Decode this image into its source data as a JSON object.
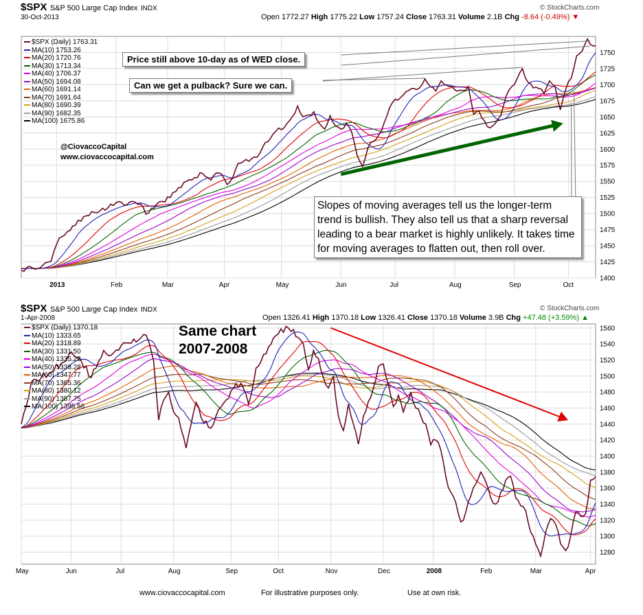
{
  "top": {
    "symbol": "$SPX",
    "description": "S&P 500 Large Cap Index",
    "exchange": "INDX",
    "date": "30-Oct-2013",
    "watermark": "© StockCharts.com",
    "ohlc": {
      "open_label": "Open",
      "open": "1772.27",
      "high_label": "High",
      "high": "1775.22",
      "low_label": "Low",
      "low": "1757.24",
      "close_label": "Close",
      "close": "1763.31",
      "volume_label": "Volume",
      "volume": "2.1B",
      "chg_label": "Chg",
      "chg": "-8.64 (-0.49%)",
      "chg_arrow": "▼"
    },
    "legend": [
      {
        "label": "$SPX (Daily) 1763.31",
        "color": "#7a0c2b"
      },
      {
        "label": "MA(10) 1753.26",
        "color": "#1f1fb4"
      },
      {
        "label": "MA(20) 1720.76",
        "color": "#e00000"
      },
      {
        "label": "MA(30) 1713.34",
        "color": "#006400"
      },
      {
        "label": "MA(40) 1706.37",
        "color": "#e000e0"
      },
      {
        "label": "MA(50) 1694.08",
        "color": "#9900cc"
      },
      {
        "label": "MA(60) 1691.14",
        "color": "#e06000"
      },
      {
        "label": "MA(70) 1691.64",
        "color": "#8b3a1a"
      },
      {
        "label": "MA(80) 1690.39",
        "color": "#d4a017"
      },
      {
        "label": "MA(90) 1682.35",
        "color": "#999999"
      },
      {
        "label": "MA(100) 1675.86",
        "color": "#000000"
      }
    ],
    "notes": {
      "n1": "Price still above 10-day as of WED close.",
      "n2": "Can we get a pulback?  Sure we can.",
      "twitter": "@CiovaccoCapital",
      "site": "www.ciovaccocapital.com",
      "big": "Slopes of moving averages tell us the longer-term trend is bullish. They also tell us that a sharp reversal leading to a bear market is highly unlikely.  It takes time for moving averages to flatten out, then roll over."
    },
    "arrow_color": "#006400"
  },
  "bottom": {
    "symbol": "$SPX",
    "description": "S&P 500 Large Cap Index",
    "exchange": "INDX",
    "date": "1-Apr-2008",
    "watermark": "© StockCharts.com",
    "ohlc": {
      "open_label": "Open",
      "open": "1326.41",
      "high_label": "High",
      "high": "1370.18",
      "low_label": "Low",
      "low": "1326.41",
      "close_label": "Close",
      "close": "1370.18",
      "volume_label": "Volume",
      "volume": "3.9B",
      "chg_label": "Chg",
      "chg": "+47.48 (+3.59%)",
      "chg_arrow": "▲"
    },
    "legend": [
      {
        "label": "$SPX (Daily) 1370.18",
        "color": "#7a0c2b"
      },
      {
        "label": "MA(10) 1333.65",
        "color": "#1f1fb4"
      },
      {
        "label": "MA(20) 1318.89",
        "color": "#e00000"
      },
      {
        "label": "MA(30) 1331.50",
        "color": "#006400"
      },
      {
        "label": "MA(40) 1335.28",
        "color": "#e000e0"
      },
      {
        "label": "MA(50) 1338.28",
        "color": "#9900cc"
      },
      {
        "label": "MA(60) 1347.77",
        "color": "#e06000"
      },
      {
        "label": "MA(70) 1365.36",
        "color": "#8b3a1a"
      },
      {
        "label": "MA(80) 1380.12",
        "color": "#d4a017"
      },
      {
        "label": "MA(90) 1387.75",
        "color": "#999999"
      },
      {
        "label": "MA(100) 1395.56",
        "color": "#000000"
      }
    ],
    "notes": {
      "same1": "Same chart",
      "same2": "2007-2008"
    },
    "arrow_color": "#e00000"
  },
  "footer": {
    "site": "www.ciovaccocapital.com",
    "illustrative": "For illustrative purposes only.",
    "risk": "Use at own risk."
  },
  "chart_data": [
    {
      "type": "line",
      "title": "$SPX S&P 500 Large Cap Index INDX",
      "ylim": [
        1400,
        1775
      ],
      "yticks": [
        1400,
        1425,
        1450,
        1475,
        1500,
        1525,
        1550,
        1575,
        1600,
        1625,
        1650,
        1675,
        1700,
        1725,
        1750
      ],
      "ytick_labels": [
        "1400",
        "1425",
        "1450",
        "1475",
        "1500",
        "1525",
        "1550",
        "1575",
        "1600",
        "1625",
        "1650",
        "1675",
        "1700",
        "1725",
        "1750"
      ],
      "xlim": [
        0,
        212
      ],
      "xticks": [
        {
          "x": 13,
          "label": "2013"
        },
        {
          "x": 35,
          "label": "Feb"
        },
        {
          "x": 54,
          "label": "Mar"
        },
        {
          "x": 75,
          "label": "Apr"
        },
        {
          "x": 96,
          "label": "May"
        },
        {
          "x": 118,
          "label": "Jun"
        },
        {
          "x": 138,
          "label": "Jul"
        },
        {
          "x": 160,
          "label": "Aug"
        },
        {
          "x": 182,
          "label": "Sep"
        },
        {
          "x": 202,
          "label": "Oct"
        }
      ],
      "grid": true,
      "price_keypoints": [
        [
          0,
          1412
        ],
        [
          4,
          1416
        ],
        [
          8,
          1420
        ],
        [
          11,
          1426
        ],
        [
          14,
          1462
        ],
        [
          17,
          1472
        ],
        [
          20,
          1482
        ],
        [
          23,
          1495
        ],
        [
          26,
          1503
        ],
        [
          29,
          1504
        ],
        [
          32,
          1509
        ],
        [
          35,
          1517
        ],
        [
          38,
          1513
        ],
        [
          41,
          1519
        ],
        [
          44,
          1515
        ],
        [
          46,
          1499
        ],
        [
          49,
          1508
        ],
        [
          52,
          1519
        ],
        [
          55,
          1525
        ],
        [
          58,
          1540
        ],
        [
          61,
          1550
        ],
        [
          64,
          1556
        ],
        [
          67,
          1562
        ],
        [
          70,
          1552
        ],
        [
          72,
          1563
        ],
        [
          74,
          1561
        ],
        [
          76,
          1545
        ],
        [
          78,
          1555
        ],
        [
          80,
          1578
        ],
        [
          82,
          1581
        ],
        [
          85,
          1585
        ],
        [
          88,
          1593
        ],
        [
          90,
          1610
        ],
        [
          92,
          1617
        ],
        [
          94,
          1628
        ],
        [
          97,
          1633
        ],
        [
          100,
          1650
        ],
        [
          102,
          1667
        ],
        [
          104,
          1650
        ],
        [
          106,
          1653
        ],
        [
          108,
          1658
        ],
        [
          110,
          1640
        ],
        [
          112,
          1631
        ],
        [
          114,
          1652
        ],
        [
          116,
          1636
        ],
        [
          118,
          1631
        ],
        [
          120,
          1640
        ],
        [
          122,
          1626
        ],
        [
          124,
          1590
        ],
        [
          126,
          1573
        ],
        [
          128,
          1603
        ],
        [
          130,
          1612
        ],
        [
          133,
          1629
        ],
        [
          135,
          1652
        ],
        [
          137,
          1672
        ],
        [
          139,
          1676
        ],
        [
          141,
          1684
        ],
        [
          143,
          1691
        ],
        [
          145,
          1694
        ],
        [
          147,
          1695
        ],
        [
          149,
          1709
        ],
        [
          151,
          1697
        ],
        [
          153,
          1690
        ],
        [
          155,
          1706
        ],
        [
          157,
          1699
        ],
        [
          159,
          1697
        ],
        [
          161,
          1690
        ],
        [
          163,
          1691
        ],
        [
          165,
          1697
        ],
        [
          167,
          1654
        ],
        [
          169,
          1659
        ],
        [
          171,
          1644
        ],
        [
          173,
          1633
        ],
        [
          175,
          1640
        ],
        [
          177,
          1652
        ],
        [
          179,
          1683
        ],
        [
          181,
          1697
        ],
        [
          183,
          1709
        ],
        [
          185,
          1725
        ],
        [
          187,
          1704
        ],
        [
          189,
          1695
        ],
        [
          191,
          1694
        ],
        [
          193,
          1686
        ],
        [
          195,
          1706
        ],
        [
          197,
          1698
        ],
        [
          199,
          1661
        ],
        [
          201,
          1693
        ],
        [
          203,
          1710
        ],
        [
          205,
          1745
        ],
        [
          207,
          1752
        ],
        [
          208,
          1762
        ],
        [
          209,
          1771
        ],
        [
          210,
          1763
        ]
      ],
      "series": [
        {
          "name": "$SPX (Daily) 1763.31",
          "color": "#7a0c2b",
          "period": 1
        },
        {
          "name": "MA(10) 1753.26",
          "color": "#1f1fb4",
          "period": 10
        },
        {
          "name": "MA(20) 1720.76",
          "color": "#e00000",
          "period": 20
        },
        {
          "name": "MA(30) 1713.34",
          "color": "#006400",
          "period": 30
        },
        {
          "name": "MA(40) 1706.37",
          "color": "#e000e0",
          "period": 40
        },
        {
          "name": "MA(50) 1694.08",
          "color": "#9900cc",
          "period": 50
        },
        {
          "name": "MA(60) 1691.14",
          "color": "#e06000",
          "period": 60
        },
        {
          "name": "MA(70) 1691.64",
          "color": "#8b3a1a",
          "period": 70
        },
        {
          "name": "MA(80) 1690.39",
          "color": "#d4a017",
          "period": 80
        },
        {
          "name": "MA(90) 1682.35",
          "color": "#999999",
          "period": 90
        },
        {
          "name": "MA(100) 1675.86",
          "color": "#000000",
          "period": 100
        }
      ],
      "ma_anchor_start": 1415,
      "arrow": {
        "from": [
          118,
          1561
        ],
        "to": [
          200,
          1640
        ]
      }
    },
    {
      "type": "line",
      "title": "$SPX S&P 500 Large Cap Index INDX",
      "ylim": [
        1265,
        1565
      ],
      "yticks": [
        1280,
        1300,
        1320,
        1340,
        1360,
        1380,
        1400,
        1420,
        1440,
        1460,
        1480,
        1500,
        1520,
        1540,
        1560
      ],
      "ytick_labels": [
        "1280",
        "1300",
        "1320",
        "1340",
        "1360",
        "1380",
        "1400",
        "1420",
        "1440",
        "1460",
        "1480",
        "1500",
        "1520",
        "1540",
        "1560"
      ],
      "xlim": [
        0,
        230
      ],
      "xticks": [
        {
          "x": 0,
          "label": "May"
        },
        {
          "x": 20,
          "label": "Jun"
        },
        {
          "x": 40,
          "label": "Jul"
        },
        {
          "x": 61,
          "label": "Aug"
        },
        {
          "x": 84,
          "label": "Sep"
        },
        {
          "x": 103,
          "label": "Oct"
        },
        {
          "x": 124,
          "label": "Nov"
        },
        {
          "x": 145,
          "label": "Dec"
        },
        {
          "x": 165,
          "label": "2008"
        },
        {
          "x": 186,
          "label": "Feb"
        },
        {
          "x": 206,
          "label": "Mar"
        },
        {
          "x": 228,
          "label": "Apr"
        }
      ],
      "grid": true,
      "price_keypoints": [
        [
          0,
          1440
        ],
        [
          4,
          1492
        ],
        [
          8,
          1498
        ],
        [
          12,
          1505
        ],
        [
          16,
          1516
        ],
        [
          20,
          1530
        ],
        [
          24,
          1519
        ],
        [
          28,
          1498
        ],
        [
          30,
          1510
        ],
        [
          33,
          1532
        ],
        [
          36,
          1526
        ],
        [
          40,
          1538
        ],
        [
          44,
          1541
        ],
        [
          47,
          1545
        ],
        [
          50,
          1551
        ],
        [
          53,
          1519
        ],
        [
          55,
          1445
        ],
        [
          57,
          1470
        ],
        [
          59,
          1480
        ],
        [
          61,
          1455
        ],
        [
          63,
          1448
        ],
        [
          66,
          1410
        ],
        [
          68,
          1440
        ],
        [
          70,
          1467
        ],
        [
          73,
          1442
        ],
        [
          76,
          1435
        ],
        [
          79,
          1458
        ],
        [
          82,
          1470
        ],
        [
          85,
          1485
        ],
        [
          88,
          1491
        ],
        [
          91,
          1465
        ],
        [
          94,
          1510
        ],
        [
          97,
          1527
        ],
        [
          100,
          1540
        ],
        [
          103,
          1553
        ],
        [
          106,
          1562
        ],
        [
          109,
          1558
        ],
        [
          111,
          1548
        ],
        [
          113,
          1540
        ],
        [
          115,
          1508
        ],
        [
          117,
          1532
        ],
        [
          119,
          1522
        ],
        [
          121,
          1498
        ],
        [
          123,
          1485
        ],
        [
          125,
          1500
        ],
        [
          127,
          1450
        ],
        [
          129,
          1432
        ],
        [
          131,
          1465
        ],
        [
          133,
          1440
        ],
        [
          135,
          1415
        ],
        [
          137,
          1450
        ],
        [
          139,
          1468
        ],
        [
          141,
          1485
        ],
        [
          143,
          1512
        ],
        [
          145,
          1515
        ],
        [
          147,
          1490
        ],
        [
          149,
          1462
        ],
        [
          151,
          1476
        ],
        [
          153,
          1455
        ],
        [
          156,
          1480
        ],
        [
          158,
          1460
        ],
        [
          160,
          1450
        ],
        [
          162,
          1440
        ],
        [
          164,
          1414
        ],
        [
          166,
          1420
        ],
        [
          168,
          1408
        ],
        [
          170,
          1375
        ],
        [
          172,
          1355
        ],
        [
          174,
          1342
        ],
        [
          176,
          1318
        ],
        [
          178,
          1330
        ],
        [
          180,
          1350
        ],
        [
          182,
          1365
        ],
        [
          184,
          1380
        ],
        [
          186,
          1368
        ],
        [
          188,
          1348
        ],
        [
          190,
          1340
        ],
        [
          192,
          1355
        ],
        [
          194,
          1370
        ],
        [
          196,
          1375
        ],
        [
          198,
          1348
        ],
        [
          200,
          1338
        ],
        [
          202,
          1332
        ],
        [
          204,
          1305
        ],
        [
          206,
          1290
        ],
        [
          208,
          1275
        ],
        [
          210,
          1305
        ],
        [
          212,
          1322
        ],
        [
          214,
          1315
        ],
        [
          216,
          1290
        ],
        [
          218,
          1282
        ],
        [
          220,
          1300
        ],
        [
          222,
          1330
        ],
        [
          224,
          1325
        ],
        [
          226,
          1328
        ],
        [
          228,
          1370
        ]
      ],
      "series": [
        {
          "name": "$SPX (Daily) 1370.18",
          "color": "#7a0c2b",
          "period": 1
        },
        {
          "name": "MA(10) 1333.65",
          "color": "#1f1fb4",
          "period": 10
        },
        {
          "name": "MA(20) 1318.89",
          "color": "#e00000",
          "period": 20
        },
        {
          "name": "MA(30) 1331.50",
          "color": "#006400",
          "period": 30
        },
        {
          "name": "MA(40) 1335.28",
          "color": "#e000e0",
          "period": 40
        },
        {
          "name": "MA(50) 1338.28",
          "color": "#9900cc",
          "period": 50
        },
        {
          "name": "MA(60) 1347.77",
          "color": "#e06000",
          "period": 60
        },
        {
          "name": "MA(70) 1365.36",
          "color": "#8b3a1a",
          "period": 70
        },
        {
          "name": "MA(80) 1380.12",
          "color": "#d4a017",
          "period": 80
        },
        {
          "name": "MA(90) 1387.75",
          "color": "#999999",
          "period": 90
        },
        {
          "name": "MA(100) 1395.56",
          "color": "#000000",
          "period": 100
        }
      ],
      "ma_anchor_start": 1435,
      "arrow": {
        "from": [
          124,
          1560
        ],
        "to": [
          219,
          1445
        ]
      }
    }
  ]
}
